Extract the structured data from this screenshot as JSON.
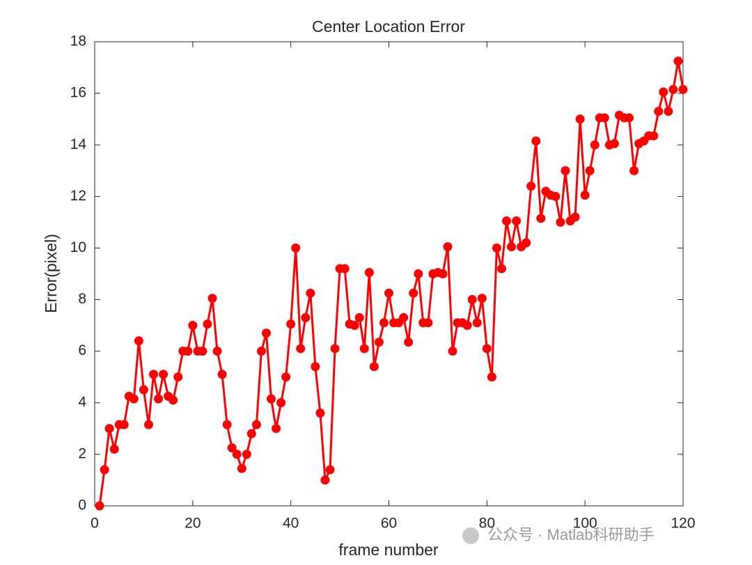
{
  "chart_data": {
    "type": "line",
    "title": "Center Location Error",
    "xlabel": "frame number",
    "ylabel": "Error(pixel)",
    "x": [
      1,
      2,
      3,
      4,
      5,
      6,
      7,
      8,
      9,
      10,
      11,
      12,
      13,
      14,
      15,
      16,
      17,
      18,
      19,
      20,
      21,
      22,
      23,
      24,
      25,
      26,
      27,
      28,
      29,
      30,
      31,
      32,
      33,
      34,
      35,
      36,
      37,
      38,
      39,
      40,
      41,
      42,
      43,
      44,
      45,
      46,
      47,
      48,
      49,
      50,
      51,
      52,
      53,
      54,
      55,
      56,
      57,
      58,
      59,
      60,
      61,
      62,
      63,
      64,
      65,
      66,
      67,
      68,
      69,
      70,
      71,
      72,
      73,
      74,
      75,
      76,
      77,
      78,
      79,
      80,
      81,
      82,
      83,
      84,
      85,
      86,
      87,
      88,
      89,
      90,
      91,
      92,
      93,
      94,
      95,
      96,
      97,
      98,
      99,
      100,
      101,
      102,
      103,
      104,
      105,
      106,
      107,
      108,
      109,
      110,
      111,
      112,
      113,
      114,
      115,
      116,
      117,
      118,
      119,
      120
    ],
    "series": [
      {
        "color": "#ff0000",
        "values": [
          0,
          1.4,
          3.0,
          2.2,
          3.15,
          3.15,
          4.25,
          4.15,
          6.4,
          4.5,
          3.15,
          5.1,
          4.15,
          5.1,
          4.25,
          4.1,
          5.0,
          6.0,
          6.0,
          7.0,
          6.0,
          6.0,
          7.05,
          8.05,
          6.0,
          5.1,
          3.15,
          2.25,
          2.0,
          1.45,
          2.0,
          2.8,
          3.15,
          6.0,
          6.7,
          4.15,
          3.0,
          4.0,
          5.0,
          7.05,
          10.0,
          6.1,
          7.3,
          8.25,
          5.4,
          3.6,
          1.0,
          1.4,
          6.1,
          9.2,
          9.2,
          7.05,
          7.0,
          7.3,
          6.1,
          9.05,
          5.4,
          6.35,
          7.1,
          8.25,
          7.1,
          7.1,
          7.3,
          6.35,
          8.25,
          9.0,
          7.1,
          7.1,
          9.0,
          9.05,
          9.0,
          10.05,
          6.0,
          7.1,
          7.1,
          7.0,
          8.0,
          7.1,
          8.05,
          6.1,
          5.0,
          10.0,
          9.2,
          11.05,
          10.05,
          11.05,
          10.05,
          10.2,
          12.4,
          14.15,
          11.15,
          12.2,
          12.05,
          12.0,
          11.0,
          13.0,
          11.05,
          11.2,
          15.0,
          12.05,
          13.0,
          14.0,
          15.05,
          15.05,
          14.0,
          14.05,
          15.15,
          15.05,
          15.05,
          13.0,
          14.05,
          14.15,
          14.35,
          14.35,
          15.3,
          16.05,
          15.3,
          16.15,
          17.25,
          16.15
        ]
      }
    ],
    "xlim": [
      0,
      120
    ],
    "xticks": [
      0,
      20,
      40,
      60,
      80,
      100,
      120
    ],
    "ylim": [
      0,
      18
    ],
    "yticks": [
      0,
      2,
      4,
      6,
      8,
      10,
      12,
      14,
      16,
      18
    ],
    "watermark": "公众号 · Matlab科研助手"
  }
}
